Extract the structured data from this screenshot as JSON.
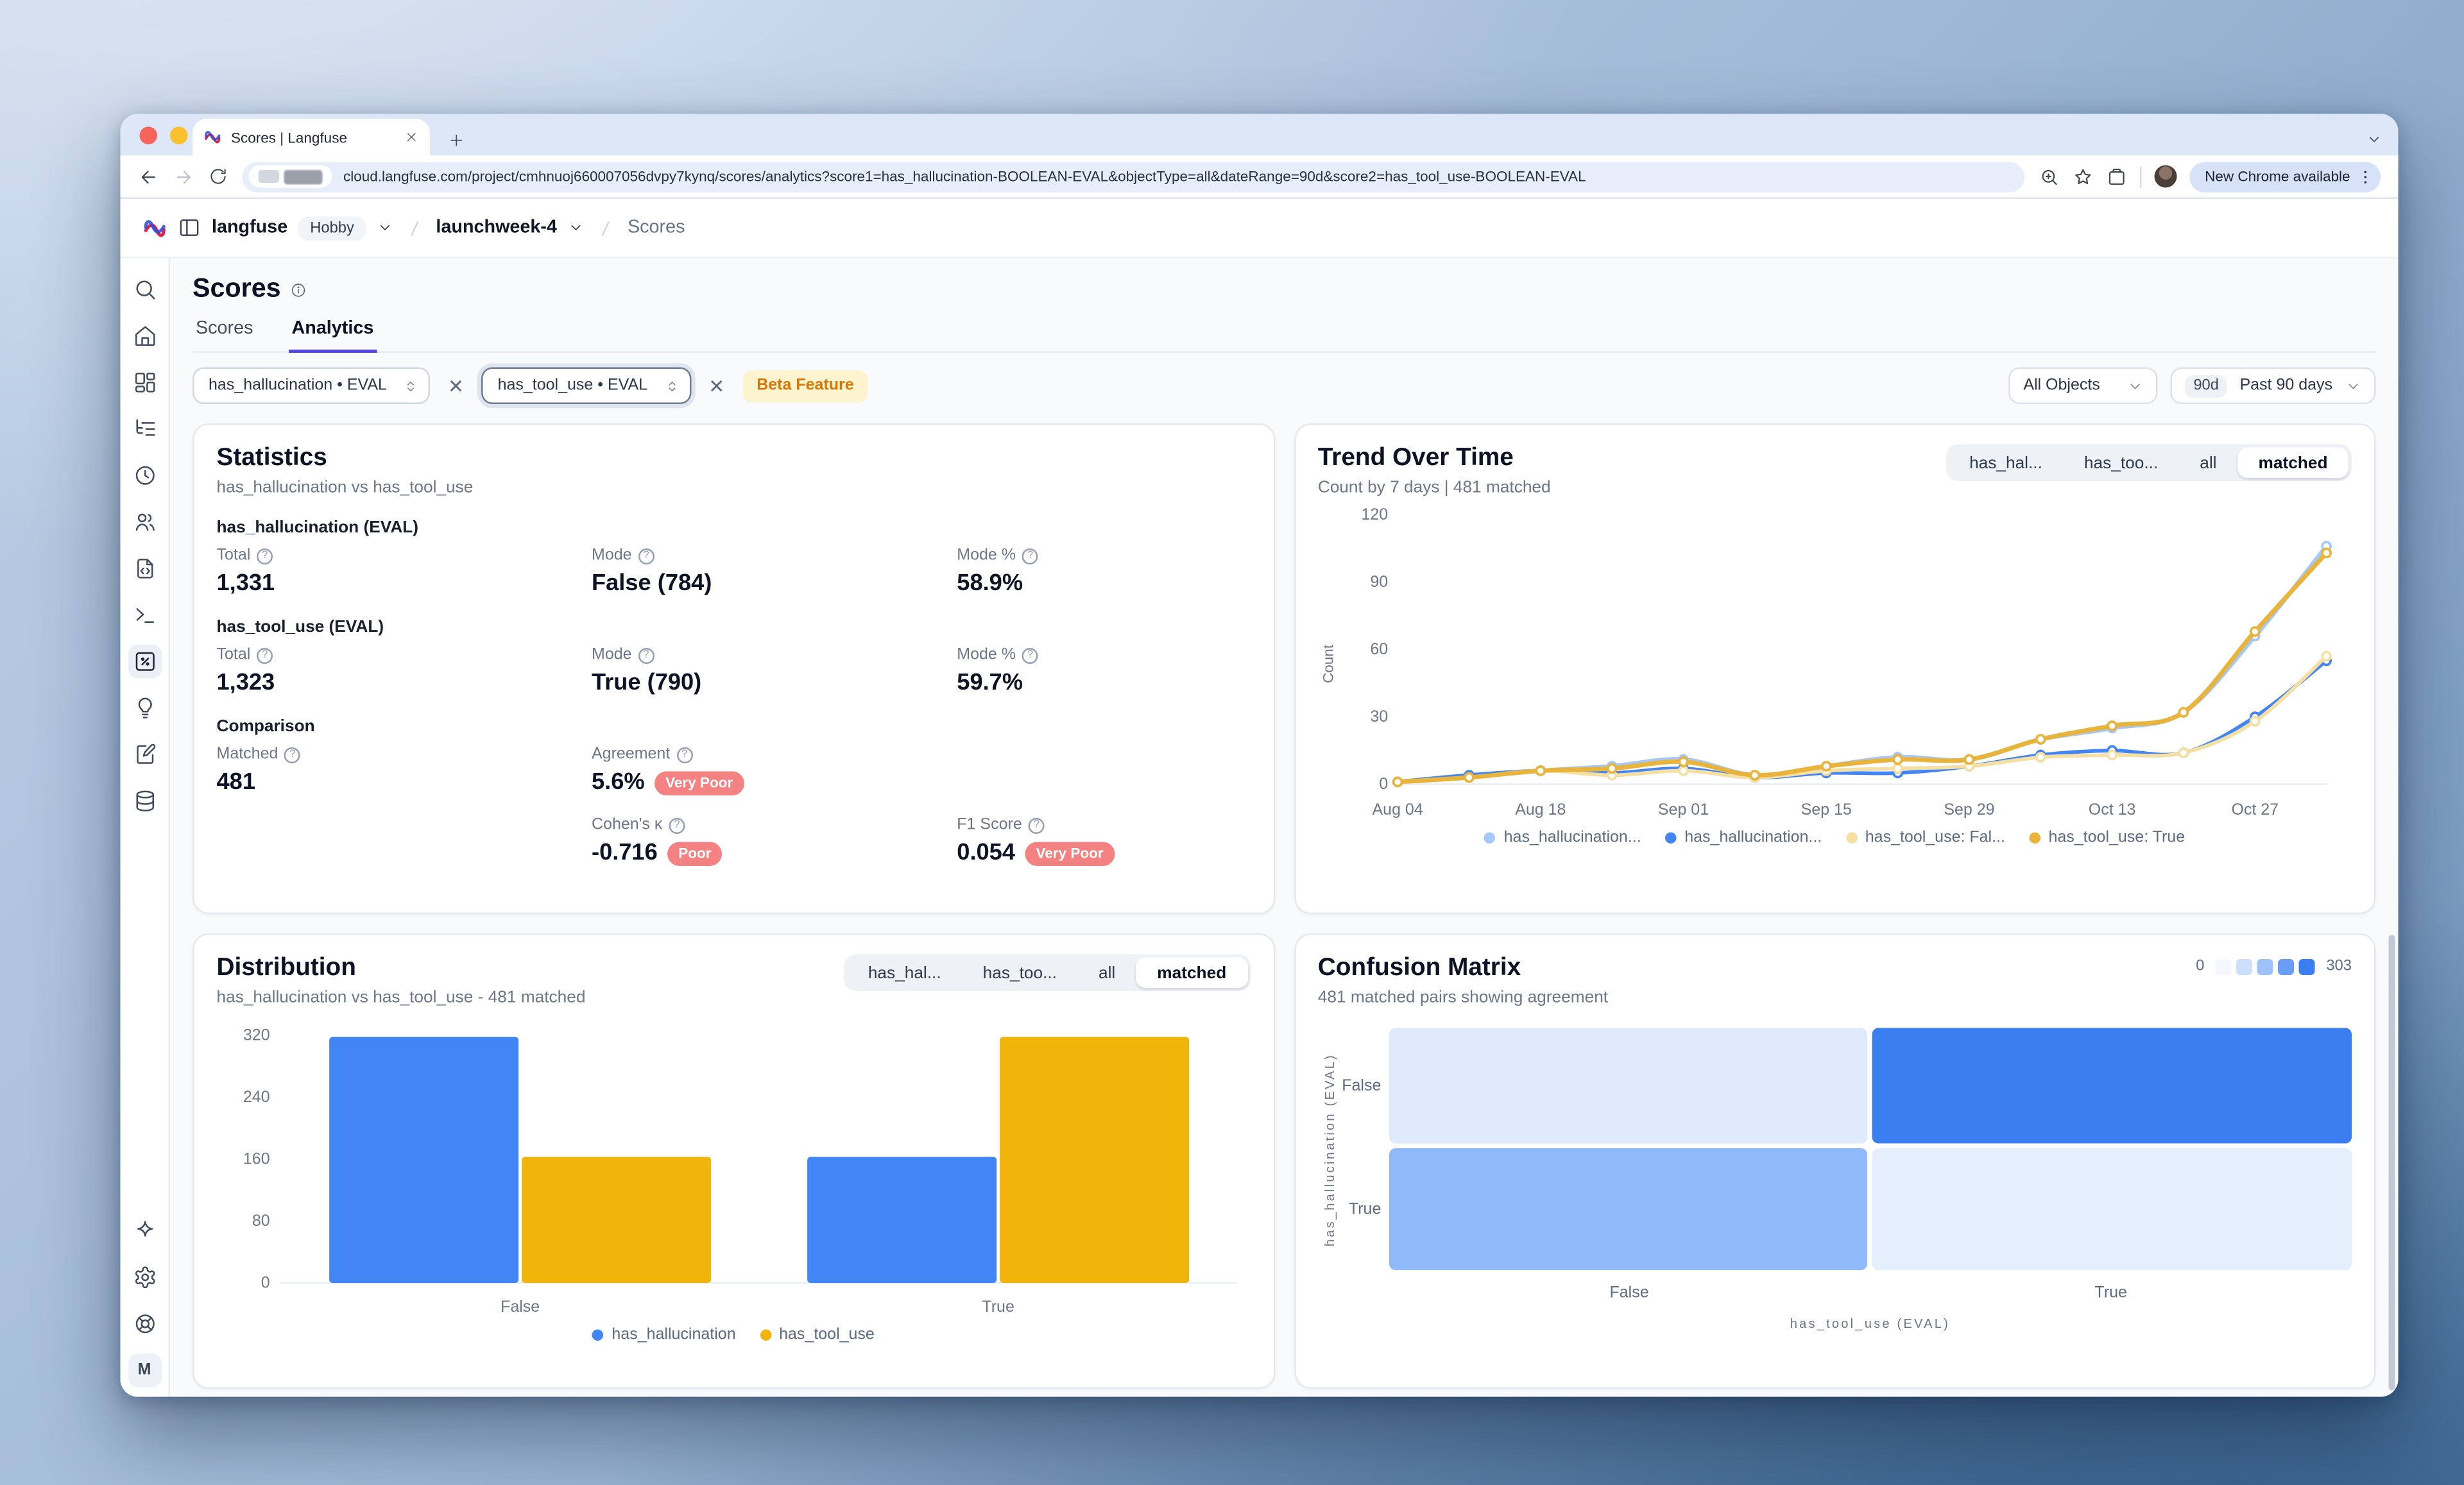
{
  "browser": {
    "tab_title": "Scores | Langfuse",
    "url": "cloud.langfuse.com/project/cmhnuoj660007056dvpy7kynq/scores/analytics?score1=has_hallucination-BOOLEAN-EVAL&objectType=all&dateRange=90d&score2=has_tool_use-BOOLEAN-EVAL",
    "new_chrome": "New Chrome available"
  },
  "header": {
    "org": "langfuse",
    "plan": "Hobby",
    "project": "launchweek-4",
    "page": "Scores"
  },
  "page": {
    "title": "Scores",
    "tabs": [
      {
        "label": "Scores",
        "active": false
      },
      {
        "label": "Analytics",
        "active": true
      }
    ]
  },
  "filters": {
    "score1": "has_hallucination • EVAL",
    "score2": "has_tool_use • EVAL",
    "beta": "Beta Feature",
    "objects": "All Objects",
    "range_badge": "90d",
    "range_label": "Past 90 days"
  },
  "segments": {
    "options": [
      "has_hal...",
      "has_too...",
      "all",
      "matched"
    ],
    "selected": "matched"
  },
  "sidebar": {
    "top": [
      {
        "icon": "search",
        "name": "search"
      },
      {
        "icon": "home",
        "name": "home"
      },
      {
        "icon": "dashboard",
        "name": "dashboards"
      },
      {
        "icon": "tree",
        "name": "tracing"
      },
      {
        "icon": "clock",
        "name": "sessions"
      },
      {
        "icon": "users",
        "name": "users"
      },
      {
        "icon": "file-code",
        "name": "prompts"
      },
      {
        "icon": "terminal",
        "name": "playground"
      },
      {
        "icon": "chart-percent",
        "name": "scores",
        "active": true
      },
      {
        "icon": "lightbulb",
        "name": "evaluators"
      },
      {
        "icon": "notebook-pen",
        "name": "annotation"
      },
      {
        "icon": "database",
        "name": "datasets"
      }
    ],
    "bottom": [
      {
        "icon": "sparkles",
        "name": "updates"
      },
      {
        "icon": "gear",
        "name": "settings"
      },
      {
        "icon": "lifebuoy",
        "name": "support"
      }
    ],
    "avatar": "M"
  },
  "statistics": {
    "title": "Statistics",
    "subtitle": "has_hallucination vs has_tool_use",
    "sections": [
      {
        "name": "has_hallucination (EVAL)",
        "metrics": [
          {
            "label": "Total",
            "value": "1,331"
          },
          {
            "label": "Mode",
            "value": "False (784)"
          },
          {
            "label": "Mode %",
            "value": "58.9%"
          }
        ]
      },
      {
        "name": "has_tool_use (EVAL)",
        "metrics": [
          {
            "label": "Total",
            "value": "1,323"
          },
          {
            "label": "Mode",
            "value": "True (790)"
          },
          {
            "label": "Mode %",
            "value": "59.7%"
          }
        ]
      }
    ],
    "comparison": {
      "name": "Comparison",
      "matched": {
        "label": "Matched",
        "value": "481"
      },
      "agreement": {
        "label": "Agreement",
        "value": "5.6%",
        "badge": "Very Poor"
      },
      "cohens": {
        "label": "Cohen's κ",
        "value": "-0.716",
        "badge": "Poor"
      },
      "f1": {
        "label": "F1 Score",
        "value": "0.054",
        "badge": "Very Poor"
      }
    }
  },
  "chart_data": [
    {
      "id": "trend",
      "type": "line",
      "title": "Trend Over Time",
      "subtitle": "Count by 7 days | 481 matched",
      "ylabel": "Count",
      "ylim": [
        0,
        120
      ],
      "yticks": [
        0,
        30,
        60,
        90,
        120
      ],
      "x": [
        "Aug 04",
        "Aug 11",
        "Aug 18",
        "Aug 25",
        "Sep 01",
        "Sep 08",
        "Sep 15",
        "Sep 22",
        "Sep 29",
        "Oct 06",
        "Oct 13",
        "Oct 20",
        "Oct 27",
        "Nov 03"
      ],
      "xtick_every": 2,
      "legend_position": "bottom",
      "grid": false,
      "series": [
        {
          "name": "has_hallucination...",
          "color": "#a6c8f8",
          "width": 2.8,
          "values": [
            1,
            4,
            6,
            8,
            11,
            4,
            8,
            12,
            11,
            20,
            25,
            32,
            66,
            106
          ]
        },
        {
          "name": "has_hallucination...",
          "color": "#4285f4",
          "width": 2.3,
          "values": [
            1,
            4,
            6,
            5,
            7,
            3,
            5,
            5,
            8,
            13,
            15,
            14,
            30,
            55
          ]
        },
        {
          "name": "has_tool_use: Fal...",
          "color": "#f5dfa3",
          "width": 2.3,
          "values": [
            1,
            3,
            6,
            4,
            6,
            3,
            6,
            7,
            8,
            12,
            13,
            14,
            28,
            57
          ]
        },
        {
          "name": "has_tool_use: True",
          "color": "#e9b43c",
          "width": 2.8,
          "values": [
            1,
            3,
            6,
            7,
            10,
            4,
            8,
            11,
            11,
            20,
            26,
            32,
            68,
            103
          ]
        }
      ]
    },
    {
      "id": "distribution",
      "type": "bar",
      "title": "Distribution",
      "subtitle": "has_hallucination vs has_tool_use - 481 matched",
      "categories": [
        "False",
        "True"
      ],
      "yticks": [
        0,
        80,
        160,
        240,
        320
      ],
      "ylim": [
        0,
        340
      ],
      "legend_position": "bottom",
      "series": [
        {
          "name": "has_hallucination",
          "color": "#4285f4",
          "values": [
            318,
            163
          ]
        },
        {
          "name": "has_tool_use",
          "color": "#f0b40a",
          "values": [
            163,
            318
          ]
        }
      ]
    },
    {
      "id": "confusion",
      "type": "heatmap",
      "title": "Confusion Matrix",
      "subtitle": "481 matched pairs showing agreement",
      "xlabel": "has_tool_use (EVAL)",
      "ylabel": "has_hallucination (EVAL)",
      "rows": [
        "False",
        "True"
      ],
      "cols": [
        "False",
        "True"
      ],
      "scale": {
        "min": "0",
        "max": "303",
        "swatches": [
          "#f3f7fe",
          "#cedffc",
          "#9dc1f9",
          "#699df6",
          "#3b7ef2"
        ]
      },
      "cells": [
        {
          "row": "False",
          "col": "False",
          "color": "#dfeafd"
        },
        {
          "row": "False",
          "col": "True",
          "color": "#3b7ef2"
        },
        {
          "row": "True",
          "col": "False",
          "color": "#8fb9f8"
        },
        {
          "row": "True",
          "col": "True",
          "color": "#e4eefd"
        }
      ]
    }
  ],
  "colors": {
    "accent": "#4f46e5",
    "series_blue": "#4285f4",
    "series_gold": "#f0b40a",
    "badge_red_bg": "#f58282",
    "beta_text": "#d97706"
  }
}
